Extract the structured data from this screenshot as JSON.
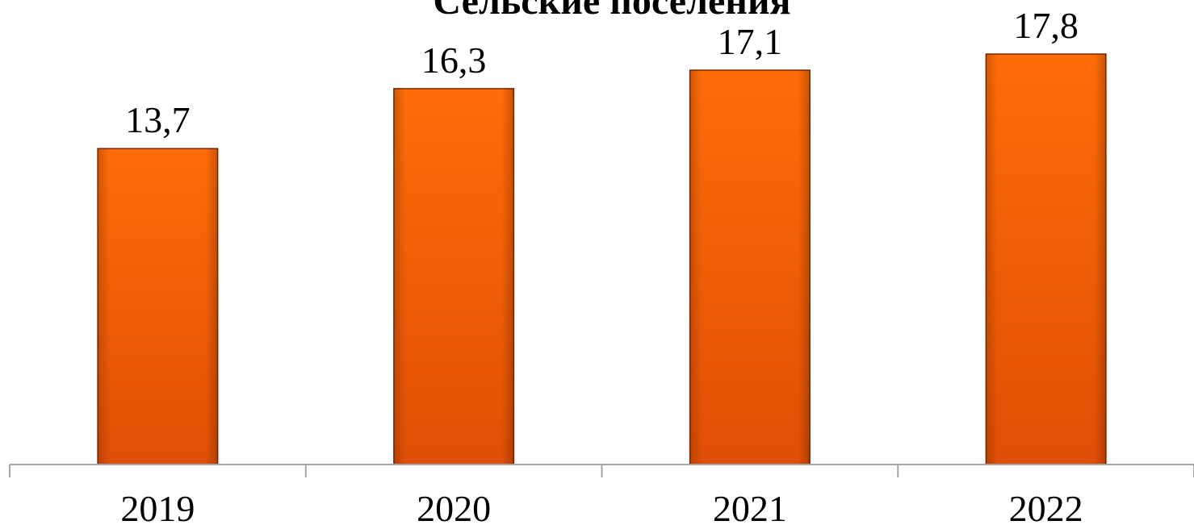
{
  "chart_data": {
    "type": "bar",
    "title": "Сельские поселения",
    "categories": [
      "2019",
      "2020",
      "2021",
      "2022"
    ],
    "values": [
      13.7,
      16.3,
      17.1,
      17.8
    ],
    "data_labels": [
      "13,7",
      "16,3",
      "17,1",
      "17,8"
    ],
    "xlabel": "",
    "ylabel": "",
    "ylim": [
      0,
      17.8
    ],
    "grid": false,
    "legend": "none",
    "bar_color": "#ff6a00",
    "bar_color_dark": "#c84400",
    "axis_color": "#a6a6a6"
  }
}
